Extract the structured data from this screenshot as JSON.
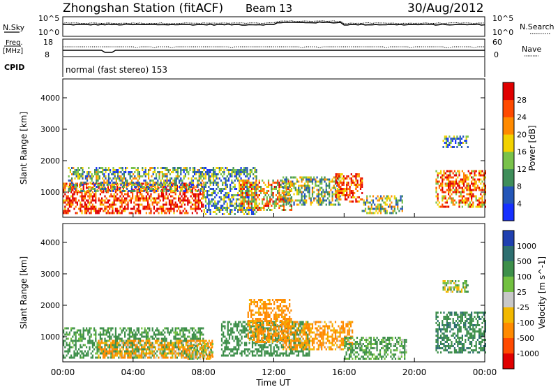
{
  "header": {
    "station": "Zhongshan Station (fitACF)",
    "beam": "Beam 13",
    "date": "30/Aug/2012"
  },
  "panels": {
    "nsky_label": "N.Sky",
    "nsearch_label": "N.Search",
    "nsky_tick_top": "10^5",
    "nsky_tick_bottom": "10^0",
    "freq_label_1": "Freq.",
    "freq_label_2": "[MHz]",
    "freq_tick_top": "18",
    "freq_tick_bottom": "8",
    "nave_label": "Nave",
    "nave_tick_top": "60",
    "nave_tick_bottom": "0",
    "cpid_label": "CPID",
    "cpid_text": "normal (fast stereo) 153"
  },
  "chart_data": [
    {
      "type": "heatmap",
      "name": "power",
      "ylabel": "Slant Range [km]",
      "ylim": [
        200,
        4600
      ],
      "yticks": [
        "1000",
        "2000",
        "3000",
        "4000"
      ],
      "colorbar_label": "Power [dB]",
      "colorbar_ticks": [
        "4",
        "8",
        "12",
        "16",
        "20",
        "24",
        "28"
      ],
      "colorbar_colors": [
        "#1630ff",
        "#2456b8",
        "#3f8e5a",
        "#79c24a",
        "#f2d200",
        "#ff8a00",
        "#ff4a00",
        "#e00000"
      ],
      "regions": [
        {
          "t0": 0.0,
          "t1": 8.0,
          "r0": 300,
          "r1": 1300,
          "level": 28
        },
        {
          "t0": 0.3,
          "t1": 8.0,
          "r0": 1000,
          "r1": 1800,
          "level": 12
        },
        {
          "t0": 8.0,
          "t1": 11.0,
          "r0": 300,
          "r1": 1800,
          "level": 10
        },
        {
          "t0": 10.0,
          "t1": 13.0,
          "r0": 400,
          "r1": 1400,
          "level": 20
        },
        {
          "t0": 12.5,
          "t1": 15.8,
          "r0": 600,
          "r1": 1500,
          "level": 14
        },
        {
          "t0": 15.5,
          "t1": 17.0,
          "r0": 700,
          "r1": 1600,
          "level": 26
        },
        {
          "t0": 17.0,
          "t1": 19.3,
          "r0": 300,
          "r1": 900,
          "level": 14
        },
        {
          "t0": 21.2,
          "t1": 24.0,
          "r0": 500,
          "r1": 1700,
          "level": 24
        },
        {
          "t0": 21.6,
          "t1": 23.0,
          "r0": 2450,
          "r1": 2800,
          "level": 8
        }
      ]
    },
    {
      "type": "heatmap",
      "name": "velocity",
      "ylabel": "Slant Range [km]",
      "ylim": [
        200,
        4600
      ],
      "yticks": [
        "1000",
        "2000",
        "3000",
        "4000"
      ],
      "colorbar_label": "Velocity [m s^-1]",
      "colorbar_ticks": [
        "1000",
        "500",
        "100",
        "25",
        "-25",
        "-100",
        "-500",
        "-1000"
      ],
      "colorbar_colors": [
        "#2040b0",
        "#2e6f70",
        "#3d8f4a",
        "#72c040",
        "#c8c8c8",
        "#f2b800",
        "#ff8a00",
        "#ff4a00",
        "#e00000"
      ],
      "regions": [
        {
          "t0": 0.0,
          "t1": 8.0,
          "r0": 300,
          "r1": 1300,
          "v": 200
        },
        {
          "t0": 2.0,
          "t1": 8.5,
          "r0": 300,
          "r1": 900,
          "v": -120
        },
        {
          "t0": 7.0,
          "t1": 8.5,
          "r0": 300,
          "r1": 800,
          "v": 0
        },
        {
          "t0": 9.0,
          "t1": 14.0,
          "r0": 400,
          "r1": 1500,
          "v": 300
        },
        {
          "t0": 10.5,
          "t1": 13.0,
          "r0": 800,
          "r1": 2200,
          "v": -200
        },
        {
          "t0": 12.5,
          "t1": 16.5,
          "r0": 600,
          "r1": 1500,
          "v": -150
        },
        {
          "t0": 16.0,
          "t1": 19.5,
          "r0": 300,
          "r1": 1000,
          "v": 150
        },
        {
          "t0": 21.2,
          "t1": 24.0,
          "r0": 500,
          "r1": 1800,
          "v": 450
        },
        {
          "t0": 21.6,
          "t1": 23.0,
          "r0": 2450,
          "r1": 2800,
          "v": 60
        }
      ]
    }
  ],
  "time_axis": {
    "xlabel": "Time UT",
    "xlim": [
      0,
      24
    ],
    "ticks": [
      "00:00",
      "04:00",
      "08:00",
      "12:00",
      "16:00",
      "20:00",
      "00:00"
    ]
  }
}
